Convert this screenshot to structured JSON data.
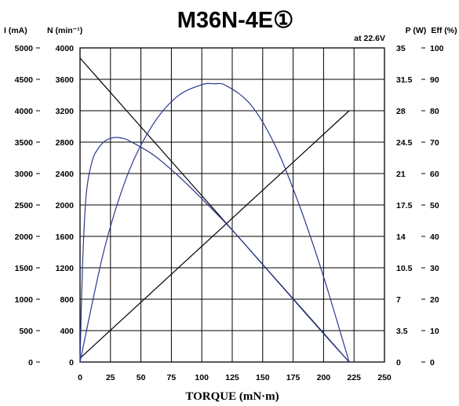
{
  "chart_data": {
    "type": "line",
    "title": "M36N-4E①",
    "annotation": "at 22.6V",
    "xlabel": "TORQUE (mN·m)",
    "xlim": [
      0,
      250
    ],
    "x_ticks": [
      "0",
      "25",
      "50",
      "75",
      "100",
      "125",
      "150",
      "175",
      "200",
      "225",
      "250"
    ],
    "grid": true,
    "axes": [
      {
        "title": "I (mA)",
        "range": [
          0,
          5000
        ],
        "ticks": [
          "0",
          "500",
          "1000",
          "1500",
          "2000",
          "2500",
          "3000",
          "3500",
          "4000",
          "4500",
          "5000"
        ]
      },
      {
        "title": "N (min⁻¹)",
        "range": [
          0,
          4000
        ],
        "ticks": [
          "0",
          "400",
          "800",
          "1200",
          "1600",
          "2000",
          "2400",
          "2800",
          "3200",
          "3600",
          "4000"
        ]
      },
      {
        "title": "P (W)",
        "range": [
          0,
          35
        ],
        "ticks": [
          "0",
          "3.5",
          "7",
          "10.5",
          "14",
          "17.5",
          "21",
          "24.5",
          "28",
          "31.5",
          "35"
        ]
      },
      {
        "title": "Eff (%)",
        "range": [
          0,
          100
        ],
        "ticks": [
          "0",
          "10",
          "20",
          "30",
          "40",
          "50",
          "60",
          "70",
          "80",
          "90",
          "100"
        ]
      }
    ],
    "series": [
      {
        "axis": "N (min⁻¹)",
        "color": "#000000",
        "x": [
          0,
          221
        ],
        "y": [
          3870,
          0
        ]
      },
      {
        "axis": "I (mA)",
        "color": "#000000",
        "x": [
          0,
          221
        ],
        "y": [
          60,
          4000
        ]
      },
      {
        "axis": "P (W)",
        "color": "#2b3990",
        "x": [
          0,
          20,
          40,
          60,
          80,
          100,
          110,
          120,
          140,
          160,
          180,
          200,
          221
        ],
        "y": [
          0,
          12.6,
          21.2,
          26.5,
          29.6,
          30.9,
          31.0,
          30.8,
          28.7,
          24.2,
          17.5,
          9.5,
          0
        ]
      },
      {
        "axis": "Eff (%)",
        "color": "#2b3990",
        "x": [
          0,
          2,
          5,
          10,
          15,
          20,
          25,
          30,
          35,
          40,
          60,
          80,
          100,
          125,
          150,
          175,
          200,
          221
        ],
        "y": [
          0,
          30,
          53,
          64,
          68,
          70.2,
          71.2,
          71.5,
          71.2,
          70.5,
          66,
          59.5,
          52,
          42,
          31,
          20,
          9,
          0
        ]
      }
    ]
  }
}
